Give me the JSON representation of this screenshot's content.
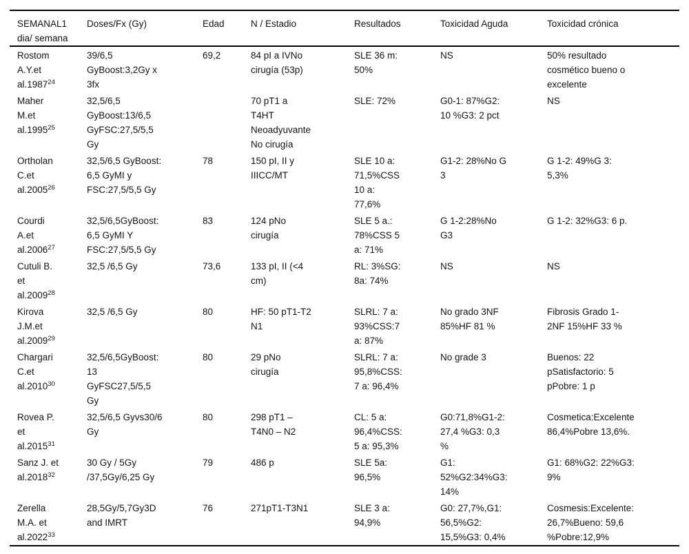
{
  "page": {
    "background_color": "#ffffff",
    "text_color": "#131313",
    "rule_color": "#000000"
  },
  "table": {
    "columns": [
      "SEMANAL1\ndia/ semana",
      "Doses/Fx (Gy)",
      "Edad",
      "N / Estadio",
      "Resultados",
      "Toxicidad Aguda",
      "Toxicidad crónica"
    ],
    "rows": [
      {
        "study": "Rostom\nA.Y.et\nal.1987",
        "ref": "24",
        "doses": "39/6,5\nGyBoost:3,2Gy x\n3fx",
        "edad": "69,2",
        "estadio": "84 pI a IVNo\ncirugía (53p)",
        "resultados": "SLE 36 m:\n50%",
        "tox_aguda": "NS",
        "tox_cronica": "50% resultado\ncosmético bueno o\nexcelente"
      },
      {
        "study": "Maher\nM.et\nal.1995",
        "ref": "25",
        "doses": "32,5/6,5\nGyBoost:13/6,5\nGyFSC:27,5/5,5\nGy",
        "edad": "",
        "estadio": "70 pT1 a\nT4HT\nNeoadyuvante\nNo cirugía",
        "resultados": "SLE: 72%",
        "tox_aguda": "G0-1: 87%G2:\n10 %G3: 2 pct",
        "tox_cronica": "NS"
      },
      {
        "study": "Ortholan\nC.et\nal.2005",
        "ref": "26",
        "doses": "32,5/6,5 GyBoost:\n6,5 GyMI y\nFSC:27,5/5,5 Gy",
        "edad": "78",
        "estadio": "150 pI, II y\nIIICC/MT",
        "resultados": "SLE 10 a:\n71,5%CSS\n10 a:\n77,6%",
        "tox_aguda": "G1-2: 28%No G\n3",
        "tox_cronica": "G 1-2: 49%G 3:\n5,3%"
      },
      {
        "study": "Courdi\nA.et\nal.2006",
        "ref": "27",
        "doses": "32,5/6,5GyBoost:\n6,5 GyMI Y\nFSC:27,5/5,5 Gy",
        "edad": "83",
        "estadio": "124 pNo\ncirugía",
        "resultados": "SLE 5 a.:\n78%CSS 5\na: 71%",
        "tox_aguda": "G 1-2:28%No\nG3",
        "tox_cronica": "G 1-2: 32%G3: 6 p."
      },
      {
        "study": "Cutuli B.\net\nal.2009",
        "ref": "28",
        "doses": "32,5 /6,5 Gy",
        "edad": "73,6",
        "estadio": "133 pI, II (<4\ncm)",
        "resultados": "RL: 3%SG:\n8a: 74%",
        "tox_aguda": "NS",
        "tox_cronica": "NS"
      },
      {
        "study": "Kirova\nJ.M.et\nal.2009",
        "ref": "29",
        "doses": "32,5 /6,5 Gy",
        "edad": "80",
        "estadio": "HF: 50 pT1-T2\nN1",
        "resultados": "SLRL: 7 a:\n93%CSS:7\na: 87%",
        "tox_aguda": "No grado 3NF\n85%HF 81 %",
        "tox_cronica": "Fibrosis Grado 1-\n2NF 15%HF 33 %"
      },
      {
        "study": "Chargari\nC.et\nal.2010",
        "ref": "30",
        "doses": "32,5/6,5GyBoost:\n13\nGyFSC27,5/5,5\nGy",
        "edad": "80",
        "estadio": "29 pNo\ncirugía",
        "resultados": "SLRL: 7 a:\n95,8%CSS:\n7 a: 96,4%",
        "tox_aguda": "No grade 3",
        "tox_cronica": "Buenos: 22\npSatisfactorio: 5\npPobre: 1 p"
      },
      {
        "study": "Rovea P.\net\nal.2015",
        "ref": "31",
        "doses": "32,5/6,5 Gyvs30/6\nGy",
        "edad": "80",
        "estadio": "298 pT1 –\nT4N0 – N2",
        "resultados": "CL: 5 a:\n96,4%CSS:\n5 a: 95,3%",
        "tox_aguda": "G0:71,8%G1-2:\n27,4 %G3: 0,3\n%",
        "tox_cronica": "Cosmetica:Excelente\n86,4%Pobre 13,6%."
      },
      {
        "study": "Sanz J. et\nal.2018",
        "ref": "32",
        "doses": "30 Gy / 5Gy\n/37,5Gy/6,25 Gy",
        "edad": "79",
        "estadio": "486 p",
        "resultados": "SLE 5a:\n96,5%",
        "tox_aguda": "G1:\n52%G2:34%G3:\n14%",
        "tox_cronica": "G1: 68%G2: 22%G3:\n9%"
      },
      {
        "study": "Zerella\nM.A. et\nal.2022",
        "ref": "33",
        "doses": "28,5Gy/5,7Gy3D\nand IMRT",
        "edad": "76",
        "estadio": "271pT1-T3N1",
        "resultados": "SLE 3 a:\n94,9%",
        "tox_aguda": "G0: 27,7%,G1:\n56,5%G2:\n15,5%G3: 0,4%",
        "tox_cronica": "Cosmesis:Excelente:\n26,7%Bueno: 59,6\n%Pobre:12,9%"
      }
    ]
  }
}
